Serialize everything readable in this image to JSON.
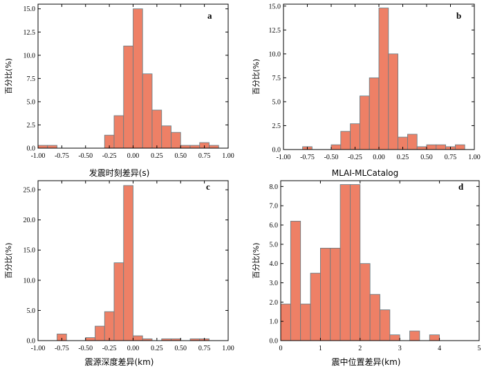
{
  "chart_data": [
    {
      "type": "bar",
      "panel": "a",
      "xlabel": "发震时刻差异(s)",
      "ylabel": "百分比(%)",
      "xlim": [
        -1.0,
        1.0
      ],
      "ylim": [
        0,
        15.5
      ],
      "xticks": [
        -1.0,
        -0.75,
        -0.5,
        -0.25,
        0.0,
        0.25,
        0.5,
        0.75,
        1.0
      ],
      "xtick_labels": [
        "-1.00",
        "-0.75",
        "-0.50",
        "-0.25",
        "0.00",
        "0.25",
        "0.50",
        "0.75",
        "1.00"
      ],
      "yticks": [
        0,
        2.5,
        5.0,
        7.5,
        10.0,
        12.5,
        15.0
      ],
      "ytick_labels": [
        "0.0",
        "2.5",
        "5.0",
        "7.5",
        "10.0",
        "12.5",
        "15.0"
      ],
      "bin_start": -1.0,
      "bin_width": 0.1,
      "values": [
        0.3,
        0.3,
        0,
        0,
        0,
        0,
        0,
        1.4,
        3.5,
        11.0,
        15.0,
        8.0,
        4.1,
        2.4,
        1.7,
        0.3,
        0.3,
        0.6,
        0.3,
        0
      ]
    },
    {
      "type": "bar",
      "panel": "b",
      "xlabel": "MLAI-MLCatalog",
      "ylabel": "百分比(%)",
      "xlim": [
        -1.0,
        1.0
      ],
      "ylim": [
        0,
        15.2
      ],
      "xticks": [
        -1.0,
        -0.75,
        -0.5,
        -0.25,
        0.0,
        0.25,
        0.5,
        0.75,
        1.0
      ],
      "xtick_labels": [
        "-1.00",
        "-0.75",
        "-0.50",
        "-0.25",
        "0.00",
        "0.25",
        "0.50",
        "0.75",
        "1.00"
      ],
      "yticks": [
        0,
        2.5,
        5.0,
        7.5,
        10.0,
        12.5,
        15.0
      ],
      "ytick_labels": [
        "0.0",
        "2.5",
        "5.0",
        "7.5",
        "10.0",
        "12.5",
        "15.0"
      ],
      "bin_start": -0.8,
      "bin_width": 0.1,
      "values": [
        0.3,
        0,
        0,
        0.5,
        1.9,
        2.7,
        5.6,
        7.5,
        14.8,
        10.0,
        1.3,
        1.6,
        0.3,
        0.5,
        0.5,
        0.3,
        0.5
      ]
    },
    {
      "type": "bar",
      "panel": "c",
      "xlabel": "震源深度差异(km)",
      "ylabel": "百分比(%)",
      "xlim": [
        -1.0,
        1.0
      ],
      "ylim": [
        0,
        26.5
      ],
      "xticks": [
        -1.0,
        -0.75,
        -0.5,
        -0.25,
        0.0,
        0.25,
        0.5,
        0.75,
        1.0
      ],
      "xtick_labels": [
        "-1.00",
        "-0.75",
        "-0.50",
        "-0.25",
        "0.00",
        "0.25",
        "0.50",
        "0.75",
        "1.00"
      ],
      "yticks": [
        0,
        5.0,
        10.0,
        15.0,
        20.0,
        25.0
      ],
      "ytick_labels": [
        "0.0",
        "5.0",
        "10.0",
        "15.0",
        "20.0",
        "25.0"
      ],
      "bin_start": -0.8,
      "bin_width": 0.1,
      "values": [
        1.1,
        0,
        0,
        0.5,
        2.4,
        4.8,
        12.9,
        25.7,
        0.8,
        0.3,
        0,
        0.3,
        0.3,
        0,
        0.3,
        0.3
      ]
    },
    {
      "type": "bar",
      "panel": "d",
      "xlabel": "震中位置差异(km)",
      "ylabel": "百分比(%)",
      "xlim": [
        0,
        5
      ],
      "ylim": [
        0,
        8.3
      ],
      "xticks": [
        0,
        1,
        2,
        3,
        4,
        5
      ],
      "xtick_labels": [
        "0",
        "1",
        "2",
        "3",
        "4",
        "5"
      ],
      "yticks": [
        0,
        1,
        2,
        3,
        4,
        5,
        6,
        7,
        8
      ],
      "ytick_labels": [
        "0.0",
        "1.0",
        "2.0",
        "3.0",
        "4.0",
        "5.0",
        "6.0",
        "7.0",
        "8.0"
      ],
      "bin_start": 0,
      "bin_width": 0.25,
      "values": [
        1.9,
        6.2,
        1.9,
        3.5,
        4.8,
        4.8,
        8.1,
        8.1,
        4.0,
        2.4,
        1.6,
        0.3,
        0,
        0.5,
        0,
        0.3
      ]
    }
  ],
  "style": {
    "bar_fill": "#EE8066",
    "bar_stroke": "#5E7C86",
    "axis_color": "#000000"
  }
}
